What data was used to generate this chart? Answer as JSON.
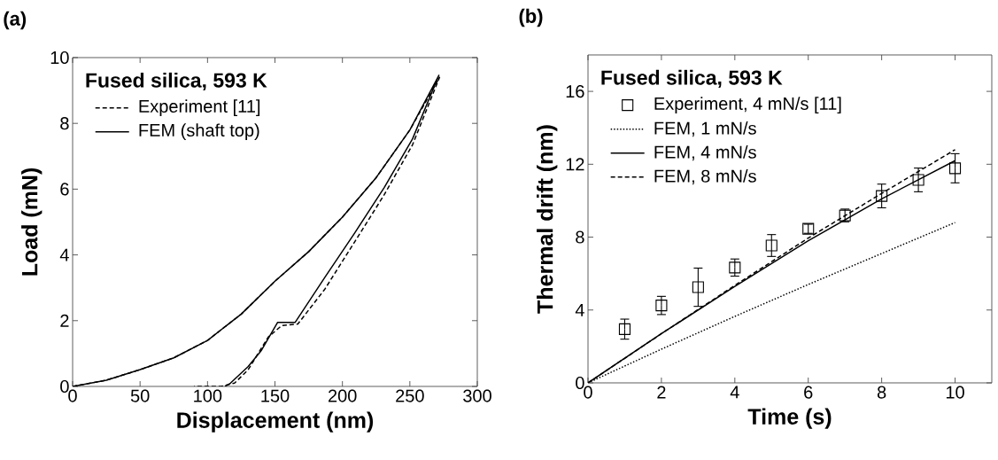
{
  "chart_data": [
    {
      "type": "line",
      "title": "(a)",
      "legend_title": "Fused silica, 593 K",
      "xlabel": "Displacement (nm)",
      "ylabel": "Load (mN)",
      "xlim": [
        0,
        300
      ],
      "ylim": [
        0,
        10
      ],
      "xticks": [
        0,
        50,
        100,
        150,
        200,
        250,
        300
      ],
      "yticks": [
        0,
        2,
        4,
        6,
        8,
        10
      ],
      "legend": "top left",
      "grid": false,
      "series": [
        {
          "name": "Experiment [11]",
          "color": "#000000",
          "line_style": "dashed",
          "x": [
            0,
            25,
            50,
            75,
            100,
            125,
            150,
            175,
            200,
            225,
            250,
            272,
            252,
            231,
            209,
            187,
            167,
            155,
            145,
            130,
            120,
            110,
            90
          ],
          "values": [
            0,
            0.19,
            0.51,
            0.87,
            1.4,
            2.2,
            3.2,
            4.1,
            5.15,
            6.35,
            7.8,
            9.4,
            7.35,
            5.83,
            4.39,
            2.96,
            1.9,
            1.85,
            1.5,
            0.5,
            0.1,
            0,
            0
          ]
        },
        {
          "name": "FEM (shaft top)",
          "color": "#000000",
          "line_style": "solid",
          "x": [
            0,
            25,
            50,
            75,
            100,
            125,
            150,
            175,
            200,
            225,
            250,
            271.5,
            252,
            231,
            209,
            187,
            165,
            152,
            140,
            130,
            117,
            113
          ],
          "values": [
            0,
            0.19,
            0.51,
            0.87,
            1.4,
            2.2,
            3.2,
            4.1,
            5.15,
            6.35,
            7.8,
            9.46,
            7.53,
            6.05,
            4.66,
            3.32,
            1.95,
            1.95,
            1.1,
            0.6,
            0.1,
            0
          ]
        }
      ]
    },
    {
      "type": "line",
      "title": "(b)",
      "legend_title": "Fused silica, 593 K",
      "xlabel": "Time (s)",
      "ylabel": "Thermal drift (nm)",
      "xlim": [
        0,
        11
      ],
      "ylim": [
        0,
        18
      ],
      "xticks": [
        0,
        2,
        4,
        6,
        8,
        10
      ],
      "yticks": [
        0,
        4,
        8,
        12,
        16
      ],
      "legend": "top left",
      "grid": false,
      "series": [
        {
          "name": "Experiment, 4 mN/s [11]",
          "type": "scatter",
          "marker": "square",
          "color": "#000000",
          "x": [
            1,
            2,
            3,
            4,
            5,
            6,
            7,
            8,
            9,
            10
          ],
          "values": [
            2.95,
            4.25,
            5.25,
            6.33,
            7.54,
            8.46,
            9.19,
            10.26,
            11.14,
            11.78
          ],
          "errors": [
            0.55,
            0.5,
            1.05,
            0.47,
            0.6,
            0.25,
            0.35,
            0.65,
            0.65,
            0.8
          ]
        },
        {
          "name": "FEM, 1 mN/s",
          "color": "#000000",
          "line_style": "dotted",
          "x": [
            0,
            2,
            4,
            6,
            8,
            10
          ],
          "values": [
            0,
            1.85,
            3.65,
            5.4,
            7.1,
            8.8
          ]
        },
        {
          "name": "FEM, 4 mN/s",
          "color": "#000000",
          "line_style": "solid",
          "x": [
            0,
            2,
            4,
            6,
            8,
            10
          ],
          "values": [
            0,
            2.7,
            5.3,
            7.8,
            10.1,
            12.2
          ]
        },
        {
          "name": "FEM, 8 mN/s",
          "color": "#000000",
          "line_style": "dashed",
          "x": [
            0,
            2,
            4,
            6,
            8,
            10
          ],
          "values": [
            0,
            2.7,
            5.35,
            7.95,
            10.4,
            12.8
          ]
        }
      ]
    }
  ]
}
